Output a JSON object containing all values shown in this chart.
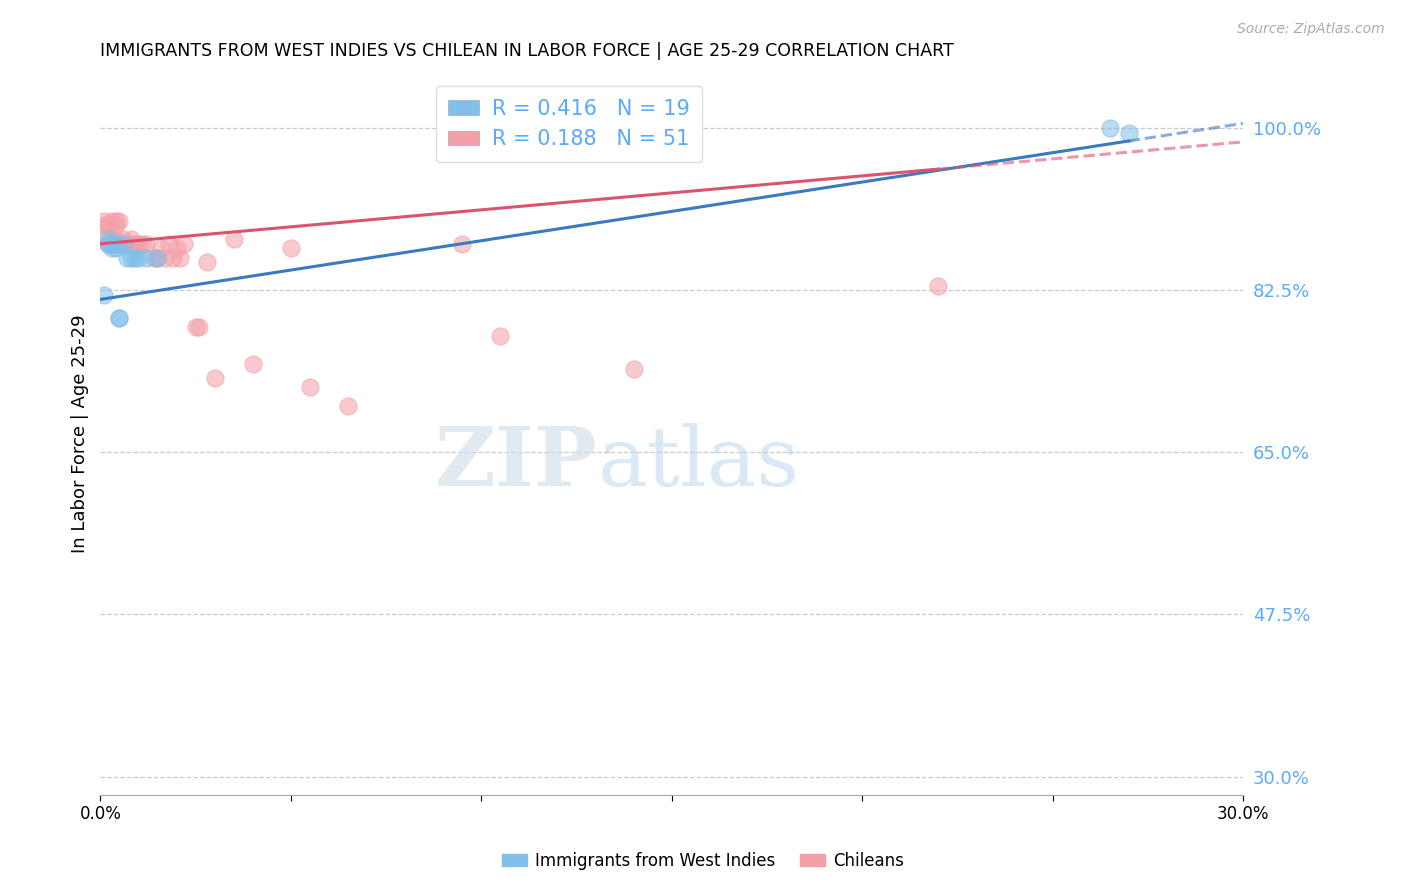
{
  "title": "IMMIGRANTS FROM WEST INDIES VS CHILEAN IN LABOR FORCE | AGE 25-29 CORRELATION CHART",
  "source": "Source: ZipAtlas.com",
  "ylabel": "In Labor Force | Age 25-29",
  "xmin": 0.0,
  "xmax": 0.3,
  "ymin": 0.28,
  "ymax": 1.06,
  "ytick_vals": [
    0.3,
    0.475,
    0.65,
    0.825,
    1.0
  ],
  "ytick_labels": [
    "30.0%",
    "47.5%",
    "65.0%",
    "82.5%",
    "100.0%"
  ],
  "xtick_vals": [
    0.0,
    0.05,
    0.1,
    0.15,
    0.2,
    0.25,
    0.3
  ],
  "xtick_labels": [
    "0.0%",
    "",
    "",
    "",
    "",
    "",
    "30.0%"
  ],
  "blue_color": "#7fbfea",
  "pink_color": "#f4a0a8",
  "blue_line_color": "#3a7abf",
  "pink_line_color": "#d9546e",
  "right_axis_color": "#5aaaff",
  "west_indies_R": 0.416,
  "west_indies_N": 19,
  "chilean_R": 0.188,
  "chilean_N": 51,
  "wi_x": [
    0.001,
    0.002,
    0.003,
    0.004,
    0.005,
    0.005,
    0.006,
    0.007,
    0.008,
    0.009,
    0.01,
    0.012,
    0.015,
    0.002,
    0.003,
    0.003,
    0.004,
    0.265,
    0.27
  ],
  "wi_y": [
    0.82,
    0.875,
    0.875,
    0.875,
    0.795,
    0.795,
    0.875,
    0.86,
    0.86,
    0.86,
    0.86,
    0.86,
    0.86,
    0.88,
    0.87,
    0.875,
    0.87,
    1.0,
    0.995
  ],
  "ch_x": [
    0.001,
    0.001,
    0.001,
    0.002,
    0.002,
    0.002,
    0.003,
    0.003,
    0.003,
    0.003,
    0.004,
    0.004,
    0.004,
    0.004,
    0.005,
    0.005,
    0.005,
    0.006,
    0.006,
    0.007,
    0.007,
    0.007,
    0.008,
    0.008,
    0.009,
    0.009,
    0.01,
    0.011,
    0.012,
    0.014,
    0.015,
    0.016,
    0.017,
    0.018,
    0.019,
    0.02,
    0.021,
    0.022,
    0.025,
    0.026,
    0.028,
    0.03,
    0.035,
    0.04,
    0.05,
    0.055,
    0.065,
    0.095,
    0.105,
    0.14,
    0.22
  ],
  "ch_y": [
    0.895,
    0.88,
    0.9,
    0.895,
    0.895,
    0.875,
    0.9,
    0.88,
    0.875,
    0.875,
    0.895,
    0.9,
    0.88,
    0.875,
    0.9,
    0.875,
    0.875,
    0.88,
    0.875,
    0.875,
    0.875,
    0.875,
    0.88,
    0.875,
    0.875,
    0.87,
    0.875,
    0.875,
    0.875,
    0.86,
    0.86,
    0.87,
    0.86,
    0.875,
    0.86,
    0.87,
    0.86,
    0.875,
    0.785,
    0.785,
    0.855,
    0.73,
    0.88,
    0.745,
    0.87,
    0.72,
    0.7,
    0.875,
    0.775,
    0.74,
    0.83
  ],
  "watermark_zip": "ZIP",
  "watermark_atlas": "atlas",
  "legend_label_blue": "Immigrants from West Indies",
  "legend_label_pink": "Chileans",
  "wi_line_x0": 0.0,
  "wi_line_y0": 0.815,
  "wi_line_x1": 0.3,
  "wi_line_y1": 1.005,
  "ch_line_x0": 0.0,
  "ch_line_y0": 0.875,
  "ch_line_x1": 0.3,
  "ch_line_y1": 0.985
}
